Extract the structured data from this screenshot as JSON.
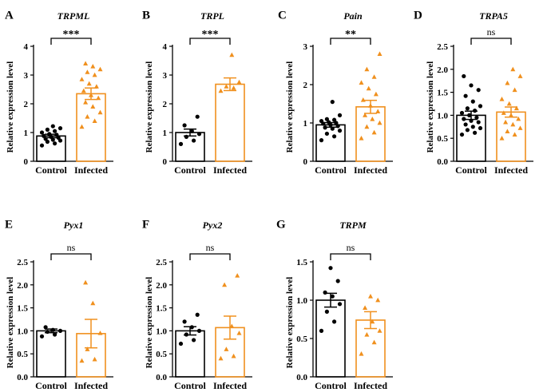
{
  "figure": {
    "ylabel": "Relative expression level",
    "categories": [
      "Control",
      "Infected"
    ],
    "colors": {
      "control": "#000000",
      "infected": "#f0901e",
      "axis": "#000000"
    }
  },
  "chart_data": [
    {
      "panel": "A",
      "title": "TRPML",
      "type": "bar",
      "ylim": [
        0,
        4
      ],
      "ticks": [
        0,
        1,
        2,
        3,
        4
      ],
      "tick_labels": [
        "0",
        "1",
        "2",
        "3",
        "4"
      ],
      "significance": "***",
      "series": [
        {
          "name": "Control",
          "mean": 0.88,
          "sem": 0.06,
          "points": [
            0.55,
            0.62,
            0.68,
            0.72,
            0.75,
            0.78,
            0.82,
            0.85,
            0.88,
            0.92,
            0.95,
            1.0,
            1.05,
            1.1,
            1.15,
            1.22
          ]
        },
        {
          "name": "Infected",
          "mean": 2.35,
          "sem": 0.2,
          "points": [
            1.2,
            1.4,
            1.55,
            1.7,
            1.9,
            2.05,
            2.2,
            2.3,
            2.45,
            2.6,
            2.7,
            2.85,
            3.0,
            3.1,
            3.2,
            3.3,
            3.4
          ]
        }
      ]
    },
    {
      "panel": "B",
      "title": "TRPL",
      "type": "bar",
      "ylim": [
        0,
        4
      ],
      "ticks": [
        0,
        1,
        2,
        3,
        4
      ],
      "tick_labels": [
        "0",
        "1",
        "2",
        "3",
        "4"
      ],
      "significance": "***",
      "series": [
        {
          "name": "Control",
          "mean": 1.0,
          "sem": 0.12,
          "points": [
            0.6,
            0.72,
            0.85,
            0.95,
            1.05,
            1.25,
            1.55
          ]
        },
        {
          "name": "Infected",
          "mean": 2.68,
          "sem": 0.22,
          "points": [
            2.45,
            2.55,
            2.6,
            2.75,
            3.7
          ]
        }
      ]
    },
    {
      "panel": "C",
      "title": "Pain",
      "type": "bar",
      "ylim": [
        0,
        3
      ],
      "ticks": [
        0,
        1,
        2,
        3
      ],
      "tick_labels": [
        "0",
        "1",
        "2",
        "3"
      ],
      "significance": "**",
      "series": [
        {
          "name": "Control",
          "mean": 0.95,
          "sem": 0.06,
          "points": [
            0.55,
            0.65,
            0.72,
            0.8,
            0.85,
            0.88,
            0.92,
            0.95,
            0.98,
            1.0,
            1.02,
            1.05,
            1.08,
            1.1,
            1.2,
            1.55
          ]
        },
        {
          "name": "Infected",
          "mean": 1.42,
          "sem": 0.17,
          "points": [
            0.6,
            0.75,
            0.9,
            1.0,
            1.1,
            1.2,
            1.3,
            1.45,
            1.6,
            1.75,
            1.9,
            2.05,
            2.2,
            2.4,
            2.8
          ]
        }
      ]
    },
    {
      "panel": "D",
      "title": "TRPA5",
      "type": "bar",
      "ylim": [
        0,
        2.5
      ],
      "ticks": [
        0,
        0.5,
        1,
        1.5,
        2,
        2.5
      ],
      "tick_labels": [
        "0.0",
        "0.5",
        "1.0",
        "1.5",
        "2.0",
        "2.5"
      ],
      "significance": "ns",
      "series": [
        {
          "name": "Control",
          "mean": 1.0,
          "sem": 0.09,
          "points": [
            0.58,
            0.62,
            0.68,
            0.72,
            0.75,
            0.8,
            0.85,
            0.88,
            0.92,
            0.95,
            1.0,
            1.05,
            1.1,
            1.15,
            1.2,
            1.3,
            1.42,
            1.55,
            1.65,
            1.85
          ]
        },
        {
          "name": "Infected",
          "mean": 1.07,
          "sem": 0.11,
          "points": [
            0.5,
            0.58,
            0.65,
            0.72,
            0.8,
            0.85,
            0.92,
            1.0,
            1.05,
            1.15,
            1.25,
            1.35,
            1.55,
            1.7,
            1.85,
            2.0
          ]
        }
      ]
    },
    {
      "panel": "E",
      "title": "Pyx1",
      "type": "bar",
      "ylim": [
        0,
        2.5
      ],
      "ticks": [
        0,
        0.5,
        1,
        1.5,
        2,
        2.5
      ],
      "tick_labels": [
        "0.0",
        "0.5",
        "1.0",
        "1.5",
        "2.0",
        "2.5"
      ],
      "significance": "ns",
      "series": [
        {
          "name": "Control",
          "mean": 1.0,
          "sem": 0.04,
          "points": [
            0.88,
            0.92,
            0.98,
            1.0,
            1.02,
            1.08
          ]
        },
        {
          "name": "Infected",
          "mean": 0.94,
          "sem": 0.31,
          "points": [
            0.35,
            0.38,
            0.6,
            0.95,
            1.6,
            2.05
          ]
        }
      ]
    },
    {
      "panel": "F",
      "title": "Pyx2",
      "type": "bar",
      "ylim": [
        0,
        2.5
      ],
      "ticks": [
        0,
        0.5,
        1,
        1.5,
        2,
        2.5
      ],
      "tick_labels": [
        "0.0",
        "0.5",
        "1.0",
        "1.5",
        "2.0",
        "2.5"
      ],
      "significance": "ns",
      "series": [
        {
          "name": "Control",
          "mean": 1.0,
          "sem": 0.09,
          "points": [
            0.72,
            0.8,
            0.92,
            1.0,
            1.08,
            1.2,
            1.35
          ]
        },
        {
          "name": "Infected",
          "mean": 1.07,
          "sem": 0.25,
          "points": [
            0.4,
            0.45,
            0.6,
            0.95,
            1.1,
            2.0,
            2.2
          ]
        }
      ]
    },
    {
      "panel": "G",
      "title": "TRPM",
      "type": "bar",
      "ylim": [
        0,
        1.5
      ],
      "ticks": [
        0,
        0.5,
        1,
        1.5
      ],
      "tick_labels": [
        "0.0",
        "0.5",
        "1.0",
        "1.5"
      ],
      "significance": "ns",
      "series": [
        {
          "name": "Control",
          "mean": 1.0,
          "sem": 0.09,
          "points": [
            0.6,
            0.72,
            0.85,
            0.95,
            1.05,
            1.1,
            1.25,
            1.42
          ]
        },
        {
          "name": "Infected",
          "mean": 0.74,
          "sem": 0.11,
          "points": [
            0.3,
            0.45,
            0.55,
            0.6,
            0.72,
            0.9,
            1.0,
            1.05
          ]
        }
      ]
    }
  ]
}
